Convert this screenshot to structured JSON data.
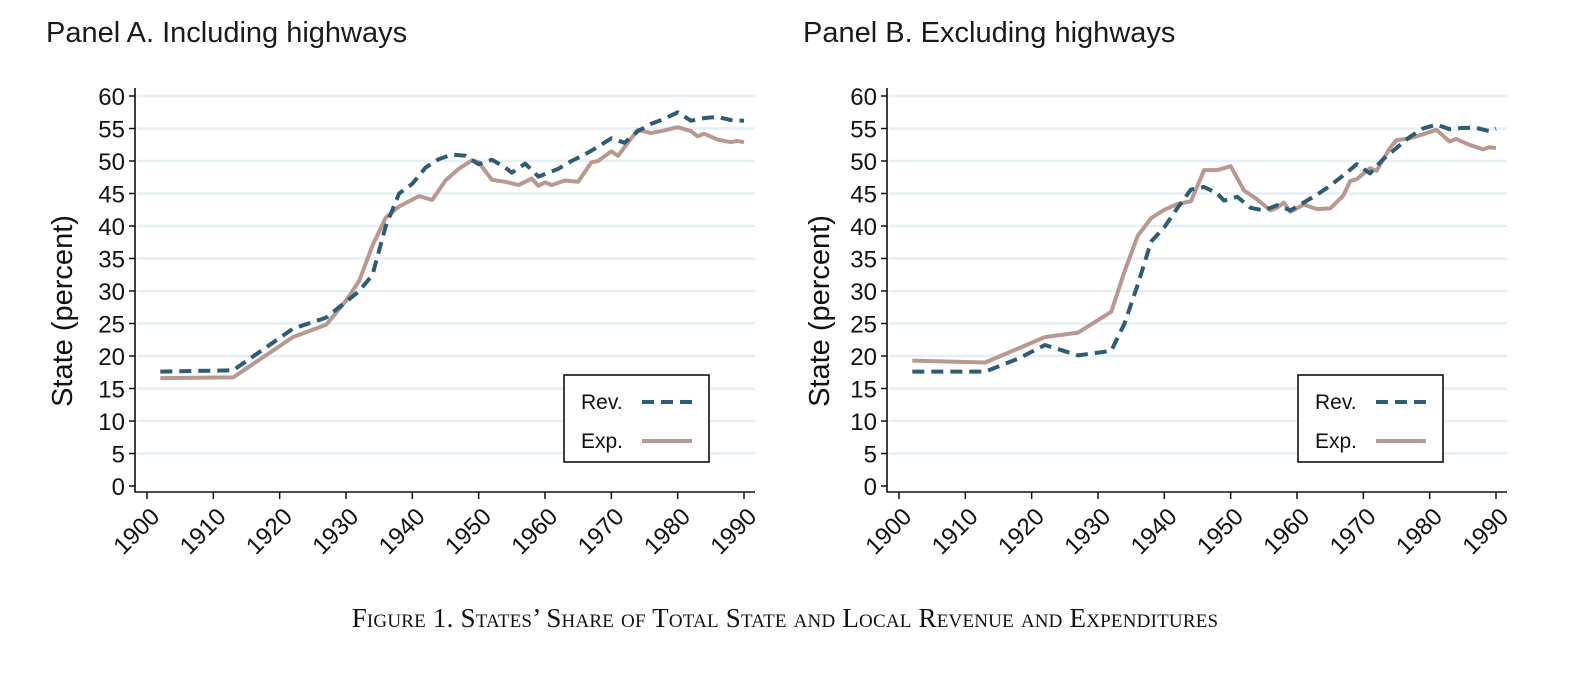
{
  "figure": {
    "caption": "Figure 1. States’ Share of Total State and Local Revenue and Expenditures"
  },
  "chart_data": [
    {
      "type": "line",
      "title": "Panel A. Including highways",
      "xlabel": "",
      "ylabel": "State (percent)",
      "xlim": [
        1900,
        1990
      ],
      "ylim": [
        0,
        60
      ],
      "x_ticks": [
        1900,
        1910,
        1920,
        1930,
        1940,
        1950,
        1960,
        1970,
        1980,
        1990
      ],
      "y_ticks": [
        0,
        5,
        10,
        15,
        20,
        25,
        30,
        35,
        40,
        45,
        50,
        55,
        60
      ],
      "grid": "horizontal",
      "legend_position": "bottom-right",
      "series": [
        {
          "name": "Rev.",
          "style": "dashed",
          "color": "#2e5c73",
          "x": [
            1902,
            1913,
            1922,
            1927,
            1932,
            1934,
            1936,
            1938,
            1940,
            1942,
            1944,
            1946,
            1948,
            1950,
            1952,
            1954,
            1955,
            1957,
            1959,
            1962,
            1964,
            1966,
            1968,
            1970,
            1972,
            1974,
            1976,
            1978,
            1980,
            1982,
            1984,
            1986,
            1988,
            1990
          ],
          "y": [
            17.6,
            17.8,
            24.2,
            25.9,
            30.0,
            32.5,
            40.0,
            45.0,
            46.5,
            49.0,
            50.3,
            51.0,
            50.8,
            49.5,
            50.2,
            49.0,
            48.2,
            49.6,
            47.6,
            48.8,
            50.0,
            51.0,
            52.2,
            53.5,
            52.8,
            54.6,
            55.7,
            56.5,
            57.5,
            56.2,
            56.6,
            56.8,
            56.3,
            56.2
          ]
        },
        {
          "name": "Exp.",
          "style": "solid",
          "color": "#b89890",
          "x": [
            1902,
            1913,
            1922,
            1927,
            1930,
            1932,
            1934,
            1936,
            1938,
            1941,
            1943,
            1945,
            1947,
            1949,
            1950,
            1952,
            1954,
            1956,
            1958,
            1959,
            1960,
            1961,
            1963,
            1965,
            1967,
            1968,
            1970,
            1971,
            1973,
            1974,
            1976,
            1978,
            1980,
            1982,
            1983,
            1984,
            1986,
            1988,
            1989,
            1990
          ],
          "y": [
            16.6,
            16.7,
            22.9,
            24.8,
            28.5,
            31.6,
            37.0,
            41.3,
            43.0,
            44.6,
            44.0,
            47.0,
            48.8,
            50.1,
            49.8,
            47.1,
            46.8,
            46.3,
            47.3,
            46.2,
            46.7,
            46.3,
            47.0,
            46.8,
            49.8,
            50.0,
            51.5,
            50.8,
            53.5,
            54.8,
            54.3,
            54.7,
            55.2,
            54.6,
            53.8,
            54.2,
            53.3,
            52.9,
            53.1,
            52.9
          ]
        }
      ]
    },
    {
      "type": "line",
      "title": "Panel B. Excluding highways",
      "xlabel": "",
      "ylabel": "State (percent)",
      "xlim": [
        1900,
        1990
      ],
      "ylim": [
        0,
        60
      ],
      "x_ticks": [
        1900,
        1910,
        1920,
        1930,
        1940,
        1950,
        1960,
        1970,
        1980,
        1990
      ],
      "y_ticks": [
        0,
        5,
        10,
        15,
        20,
        25,
        30,
        35,
        40,
        45,
        50,
        55,
        60
      ],
      "grid": "horizontal",
      "legend_position": "bottom-right",
      "series": [
        {
          "name": "Rev.",
          "style": "dashed",
          "color": "#2e5c73",
          "x": [
            1902,
            1913,
            1918,
            1922,
            1927,
            1932,
            1934,
            1936,
            1938,
            1940,
            1942,
            1944,
            1946,
            1948,
            1949,
            1951,
            1953,
            1955,
            1957,
            1959,
            1961,
            1963,
            1965,
            1967,
            1969,
            1971,
            1973,
            1975,
            1977,
            1979,
            1981,
            1983,
            1985,
            1987,
            1989,
            1990
          ],
          "y": [
            17.6,
            17.6,
            19.6,
            21.7,
            20.1,
            20.8,
            25.0,
            31.0,
            37.6,
            39.8,
            42.8,
            45.6,
            46.0,
            45.0,
            43.9,
            44.5,
            42.8,
            42.4,
            43.2,
            42.4,
            43.6,
            44.8,
            46.2,
            47.8,
            49.5,
            48.1,
            50.3,
            52.0,
            53.7,
            55.0,
            55.6,
            54.9,
            55.1,
            55.1,
            54.6,
            55.0
          ]
        },
        {
          "name": "Exp.",
          "style": "solid",
          "color": "#b89890",
          "x": [
            1902,
            1913,
            1922,
            1927,
            1932,
            1934,
            1936,
            1938,
            1940,
            1942,
            1944,
            1946,
            1948,
            1950,
            1952,
            1954,
            1956,
            1957,
            1958,
            1959,
            1961,
            1963,
            1965,
            1967,
            1968,
            1969,
            1971,
            1972,
            1974,
            1975,
            1977,
            1979,
            1981,
            1983,
            1984,
            1986,
            1988,
            1989,
            1990
          ],
          "y": [
            19.3,
            19.0,
            22.9,
            23.6,
            26.8,
            33.0,
            38.5,
            41.2,
            42.5,
            43.4,
            43.8,
            48.6,
            48.6,
            49.2,
            45.5,
            44.1,
            42.4,
            42.8,
            43.6,
            42.2,
            43.3,
            42.6,
            42.7,
            44.7,
            46.9,
            47.2,
            48.9,
            48.5,
            52.0,
            53.2,
            53.5,
            54.1,
            54.8,
            53.0,
            53.4,
            52.5,
            51.8,
            52.1,
            52.0
          ]
        }
      ]
    }
  ]
}
